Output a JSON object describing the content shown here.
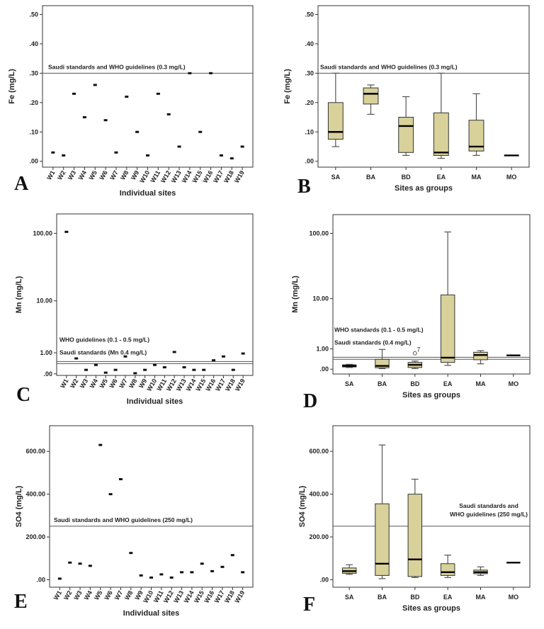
{
  "colors": {
    "box_fill": "#d8d19a",
    "axis": "#333333"
  },
  "chart_data": [
    {
      "id": "A",
      "type": "scatter",
      "panel_label": "A",
      "ylabel": "Fe (mg/L)",
      "xlabel": "Individual sites",
      "scale": "linear",
      "ylim": [
        -0.02,
        0.53
      ],
      "yticks": [
        0,
        0.1,
        0.2,
        0.3,
        0.4,
        0.5
      ],
      "ytick_labels": [
        ".00",
        ".10",
        ".20",
        ".30",
        ".40",
        ".50"
      ],
      "categories": [
        "W1",
        "W2",
        "W3",
        "W4",
        "W5",
        "W6",
        "W7",
        "W8",
        "W9",
        "W10",
        "W11",
        "W12",
        "W13",
        "W14",
        "W15",
        "W16",
        "W17",
        "W18",
        "W19"
      ],
      "values": [
        0.03,
        0.02,
        0.23,
        0.15,
        0.26,
        0.14,
        0.03,
        0.22,
        0.1,
        0.02,
        0.23,
        0.16,
        0.05,
        0.3,
        0.1,
        0.3,
        0.02,
        0.01,
        0.05
      ],
      "reference_lines": [
        {
          "value": 0.3,
          "label": "Saudi standards and WHO guidelines (0.3 mg/L)"
        }
      ]
    },
    {
      "id": "B",
      "type": "box",
      "panel_label": "B",
      "ylabel": "Fe (mg/L)",
      "xlabel": "Sites as groups",
      "scale": "linear",
      "ylim": [
        -0.02,
        0.53
      ],
      "yticks": [
        0,
        0.1,
        0.2,
        0.3,
        0.4,
        0.5
      ],
      "ytick_labels": [
        ".00",
        ".10",
        ".20",
        ".30",
        ".40",
        ".50"
      ],
      "categories": [
        "SA",
        "BA",
        "BD",
        "EA",
        "MA",
        "MO"
      ],
      "boxes": [
        {
          "min": 0.05,
          "q1": 0.075,
          "median": 0.1,
          "q3": 0.2,
          "max": 0.3
        },
        {
          "min": 0.16,
          "q1": 0.195,
          "median": 0.23,
          "q3": 0.25,
          "max": 0.26
        },
        {
          "min": 0.02,
          "q1": 0.03,
          "median": 0.12,
          "q3": 0.15,
          "max": 0.22
        },
        {
          "min": 0.01,
          "q1": 0.02,
          "median": 0.03,
          "q3": 0.165,
          "max": 0.3
        },
        {
          "min": 0.02,
          "q1": 0.035,
          "median": 0.05,
          "q3": 0.14,
          "max": 0.23
        },
        {
          "min": 0.02,
          "q1": 0.02,
          "median": 0.02,
          "q3": 0.02,
          "max": 0.02
        }
      ],
      "reference_lines": [
        {
          "value": 0.3,
          "label": "Saudi standards and WHO guidelines (0.3 mg/L)"
        }
      ]
    },
    {
      "id": "C",
      "type": "scatter",
      "panel_label": "C",
      "ylabel": "Mn (mg/L)",
      "xlabel": "Individual sites",
      "scale": "log1p",
      "ylim": [
        -0.05,
        190
      ],
      "yticks": [
        0,
        1,
        10,
        100
      ],
      "ytick_labels": [
        ".00",
        "1.00",
        "10.00",
        "100.00"
      ],
      "categories": [
        "W1",
        "W2",
        "W3",
        "W4",
        "W5",
        "W6",
        "W7",
        "W8",
        "W9",
        "W10",
        "W11",
        "W12",
        "W13",
        "W14",
        "W15",
        "W16",
        "W17",
        "W18",
        "W19"
      ],
      "values": [
        105,
        0.66,
        0.14,
        0.34,
        0.04,
        0.14,
        0.77,
        0.02,
        0.14,
        0.34,
        0.24,
        1.05,
        0.24,
        0.14,
        0.14,
        0.56,
        0.77,
        0.14,
        0.95
      ],
      "reference_lines": [
        {
          "value": 0.5,
          "label": "WHO guidelines (0.1 - 0.5 mg/L)"
        },
        {
          "value": 0.4,
          "label": "Saudi standards (Mn 0.4 mg/L)"
        }
      ]
    },
    {
      "id": "D",
      "type": "box",
      "panel_label": "D",
      "ylabel": "Mn (mg/L)",
      "xlabel": "Sites as groups",
      "scale": "log1p",
      "ylim": [
        -0.15,
        190
      ],
      "yticks": [
        0,
        1,
        10,
        100
      ],
      "ytick_labels": [
        ".00",
        "1.00",
        "10.00",
        "100.00"
      ],
      "categories": [
        "SA",
        "BA",
        "BD",
        "EA",
        "MA",
        "MO"
      ],
      "boxes": [
        {
          "min": 0.06,
          "q1": 0.08,
          "median": 0.12,
          "q3": 0.16,
          "max": 0.18
        },
        {
          "min": 0.02,
          "q1": 0.05,
          "median": 0.12,
          "q3": 0.4,
          "max": 0.96
        },
        {
          "min": 0.02,
          "q1": 0.06,
          "median": 0.16,
          "q3": 0.26,
          "max": 0.32
        },
        {
          "min": 0.14,
          "q1": 0.26,
          "median": 0.48,
          "q3": 11.5,
          "max": 105
        },
        {
          "min": 0.2,
          "q1": 0.38,
          "median": 0.62,
          "q3": 0.78,
          "max": 0.88
        },
        {
          "min": 0.6,
          "q1": 0.6,
          "median": 0.6,
          "q3": 0.6,
          "max": 0.6
        }
      ],
      "outliers": [
        {
          "category": "BD",
          "value": 0.72,
          "label": "7"
        }
      ],
      "reference_lines": [
        {
          "value": 0.5,
          "label": "WHO standards (0.1 - 0.5 mg/L)"
        },
        {
          "value": 0.4,
          "label": "Saudi standards (0.4 mg/L)"
        }
      ]
    },
    {
      "id": "E",
      "type": "scatter",
      "panel_label": "E",
      "ylabel": "SO4 (mg/L)",
      "xlabel": "Individual sites",
      "scale": "linear",
      "ylim": [
        -35,
        720
      ],
      "yticks": [
        0,
        200,
        400,
        600
      ],
      "ytick_labels": [
        ".00",
        "200.00",
        "400.00",
        "600.00"
      ],
      "categories": [
        "W1",
        "W2",
        "W3",
        "W4",
        "W5",
        "W6",
        "W7",
        "W8",
        "W9",
        "W10",
        "W11",
        "W12",
        "W13",
        "W14",
        "W15",
        "W16",
        "W17",
        "W18",
        "W19"
      ],
      "values": [
        5,
        80,
        75,
        65,
        630,
        400,
        470,
        125,
        20,
        10,
        25,
        10,
        35,
        35,
        75,
        40,
        60,
        115,
        35
      ],
      "reference_lines": [
        {
          "value": 250,
          "label": "Saudi standards and WHO guidelines (250 mg/L)"
        }
      ]
    },
    {
      "id": "F",
      "type": "box",
      "panel_label": "F",
      "ylabel": "SO4 (mg/L)",
      "xlabel": "Sites as groups",
      "scale": "linear",
      "ylim": [
        -35,
        720
      ],
      "yticks": [
        0,
        200,
        400,
        600
      ],
      "ytick_labels": [
        ".00",
        "200.00",
        "400.00",
        "600.00"
      ],
      "categories": [
        "SA",
        "BA",
        "BD",
        "EA",
        "MA",
        "MO"
      ],
      "boxes": [
        {
          "min": 25,
          "q1": 30,
          "median": 40,
          "q3": 55,
          "max": 70
        },
        {
          "min": 5,
          "q1": 20,
          "median": 75,
          "q3": 355,
          "max": 630
        },
        {
          "min": 10,
          "q1": 15,
          "median": 95,
          "q3": 400,
          "max": 470
        },
        {
          "min": 10,
          "q1": 20,
          "median": 35,
          "q3": 75,
          "max": 115
        },
        {
          "min": 20,
          "q1": 28,
          "median": 35,
          "q3": 45,
          "max": 60
        },
        {
          "min": 80,
          "q1": 80,
          "median": 80,
          "q3": 80,
          "max": 80
        }
      ],
      "reference_lines": [
        {
          "value": 250,
          "label": "Saudi standards and WHO guidelines (250 mg/L)"
        }
      ]
    }
  ]
}
